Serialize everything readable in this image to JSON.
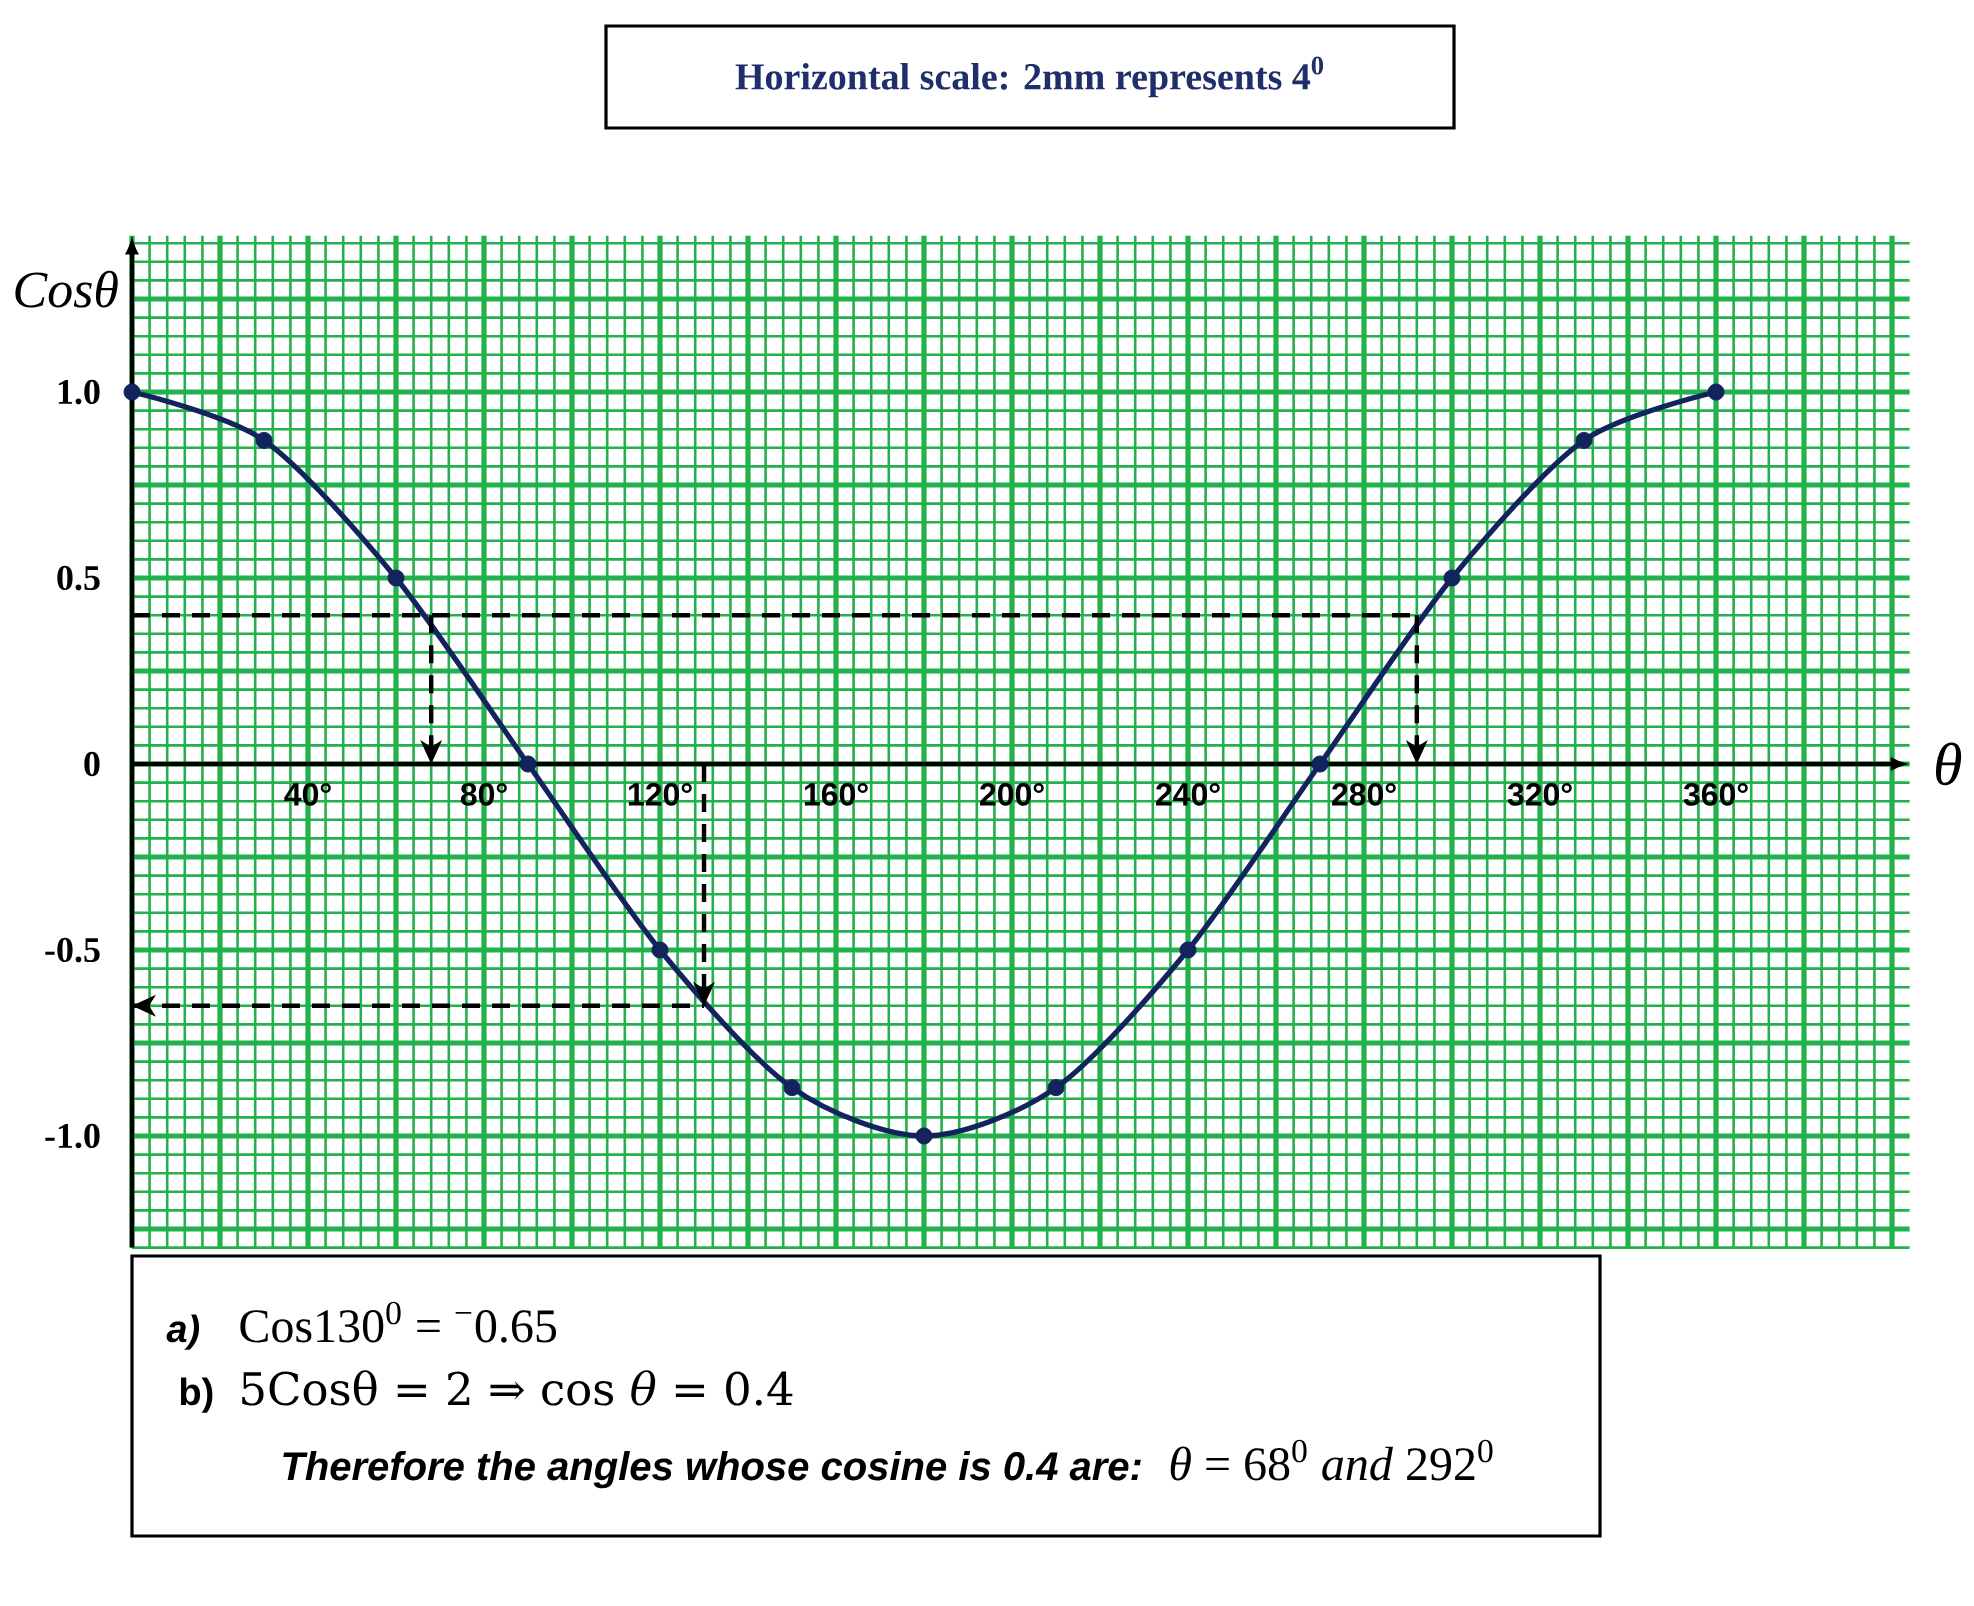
{
  "chart_data": {
    "type": "line",
    "xlabel": "θ",
    "ylabel": "Cosθ",
    "annotations": [
      "Horizontal scale: 2mm represents 4$^{0}$",
      "a)",
      "Cos130$^{0}$ = $^{−}$0.65",
      "b)",
      "5Cosθ = 2 ⇒ cos *θ* = 0.4",
      "Therefore the angles whose cosine is 0.4 are:",
      "*θ* = 68$^{0}$ *and* 292$^{0}$"
    ],
    "xlim": [
      0,
      404
    ],
    "ylim": [
      -1.3,
      1.42
    ],
    "xticks": [
      {
        "value": 0,
        "label": null
      },
      {
        "value": 4,
        "label": null
      },
      {
        "value": 8,
        "label": null
      },
      {
        "value": 12,
        "label": null
      },
      {
        "value": 16,
        "label": null
      },
      {
        "value": 20,
        "label": null
      },
      {
        "value": 24,
        "label": null
      },
      {
        "value": 28,
        "label": null
      },
      {
        "value": 32,
        "label": null
      },
      {
        "value": 36,
        "label": null
      },
      {
        "value": 40,
        "label": "40°"
      },
      {
        "value": 44,
        "label": null
      },
      {
        "value": 48,
        "label": null
      },
      {
        "value": 52,
        "label": null
      },
      {
        "value": 56,
        "label": null
      },
      {
        "value": 60,
        "label": null
      },
      {
        "value": 64,
        "label": null
      },
      {
        "value": 68,
        "label": null
      },
      {
        "value": 72,
        "label": null
      },
      {
        "value": 76,
        "label": null
      },
      {
        "value": 80,
        "label": "80°"
      },
      {
        "value": 84,
        "label": null
      },
      {
        "value": 88,
        "label": null
      },
      {
        "value": 92,
        "label": null
      },
      {
        "value": 96,
        "label": null
      },
      {
        "value": 100,
        "label": null
      },
      {
        "value": 104,
        "label": null
      },
      {
        "value": 108,
        "label": null
      },
      {
        "value": 112,
        "label": null
      },
      {
        "value": 116,
        "label": null
      },
      {
        "value": 120,
        "label": "120°"
      },
      {
        "value": 124,
        "label": null
      },
      {
        "value": 128,
        "label": null
      },
      {
        "value": 132,
        "label": null
      },
      {
        "value": 136,
        "label": null
      },
      {
        "value": 140,
        "label": null
      },
      {
        "value": 144,
        "label": null
      },
      {
        "value": 148,
        "label": null
      },
      {
        "value": 152,
        "label": null
      },
      {
        "value": 156,
        "label": null
      },
      {
        "value": 160,
        "label": "160°"
      },
      {
        "value": 164,
        "label": null
      },
      {
        "value": 168,
        "label": null
      },
      {
        "value": 172,
        "label": null
      },
      {
        "value": 176,
        "label": null
      },
      {
        "value": 180,
        "label": null
      },
      {
        "value": 184,
        "label": null
      },
      {
        "value": 188,
        "label": null
      },
      {
        "value": 192,
        "label": null
      },
      {
        "value": 196,
        "label": null
      },
      {
        "value": 200,
        "label": "200°"
      },
      {
        "value": 204,
        "label": null
      },
      {
        "value": 208,
        "label": null
      },
      {
        "value": 212,
        "label": null
      },
      {
        "value": 216,
        "label": null
      },
      {
        "value": 220,
        "label": null
      },
      {
        "value": 224,
        "label": null
      },
      {
        "value": 228,
        "label": null
      },
      {
        "value": 232,
        "label": null
      },
      {
        "value": 236,
        "label": null
      },
      {
        "value": 240,
        "label": "240°"
      },
      {
        "value": 244,
        "label": null
      },
      {
        "value": 248,
        "label": null
      },
      {
        "value": 252,
        "label": null
      },
      {
        "value": 256,
        "label": null
      },
      {
        "value": 260,
        "label": null
      },
      {
        "value": 264,
        "label": null
      },
      {
        "value": 268,
        "label": null
      },
      {
        "value": 272,
        "label": null
      },
      {
        "value": 276,
        "label": null
      },
      {
        "value": 280,
        "label": "280°"
      },
      {
        "value": 284,
        "label": null
      },
      {
        "value": 288,
        "label": null
      },
      {
        "value": 292,
        "label": null
      },
      {
        "value": 296,
        "label": null
      },
      {
        "value": 300,
        "label": null
      },
      {
        "value": 304,
        "label": null
      },
      {
        "value": 308,
        "label": null
      },
      {
        "value": 312,
        "label": null
      },
      {
        "value": 316,
        "label": null
      },
      {
        "value": 320,
        "label": "320°"
      },
      {
        "value": 324,
        "label": null
      },
      {
        "value": 328,
        "label": null
      },
      {
        "value": 332,
        "label": null
      },
      {
        "value": 336,
        "label": null
      },
      {
        "value": 340,
        "label": null
      },
      {
        "value": 344,
        "label": null
      },
      {
        "value": 348,
        "label": null
      },
      {
        "value": 352,
        "label": null
      },
      {
        "value": 356,
        "label": null
      },
      {
        "value": 360,
        "label": "360°"
      },
      {
        "value": 364,
        "label": null
      },
      {
        "value": 368,
        "label": null
      },
      {
        "value": 372,
        "label": null
      },
      {
        "value": 376,
        "label": null
      },
      {
        "value": 380,
        "label": null
      },
      {
        "value": 384,
        "label": null
      },
      {
        "value": 388,
        "label": null
      },
      {
        "value": 392,
        "label": null
      },
      {
        "value": 396,
        "label": null
      },
      {
        "value": 400,
        "label": null
      }
    ],
    "yticks": [
      {
        "value": -1.3,
        "label": null
      },
      {
        "value": -1.25,
        "label": null
      },
      {
        "value": -1.2,
        "label": null
      },
      {
        "value": -1.15,
        "label": null
      },
      {
        "value": -1.1,
        "label": null
      },
      {
        "value": -1.05,
        "label": null
      },
      {
        "value": -1,
        "label": "-1.0"
      },
      {
        "value": -0.95,
        "label": null
      },
      {
        "value": -0.9,
        "label": null
      },
      {
        "value": -0.85,
        "label": null
      },
      {
        "value": -0.8,
        "label": null
      },
      {
        "value": -0.75,
        "label": null
      },
      {
        "value": -0.7,
        "label": null
      },
      {
        "value": -0.65,
        "label": null
      },
      {
        "value": -0.6,
        "label": null
      },
      {
        "value": -0.55,
        "label": null
      },
      {
        "value": -0.5,
        "label": "-0.5"
      },
      {
        "value": -0.45,
        "label": null
      },
      {
        "value": -0.4,
        "label": null
      },
      {
        "value": -0.35,
        "label": null
      },
      {
        "value": -0.3,
        "label": null
      },
      {
        "value": -0.25,
        "label": null
      },
      {
        "value": -0.2,
        "label": null
      },
      {
        "value": -0.15,
        "label": null
      },
      {
        "value": -0.1,
        "label": null
      },
      {
        "value": -0.05,
        "label": null
      },
      0,
      {
        "value": 0.05,
        "label": null
      },
      {
        "value": 0.1,
        "label": null
      },
      {
        "value": 0.15,
        "label": null
      },
      {
        "value": 0.2,
        "label": null
      },
      {
        "value": 0.25,
        "label": null
      },
      {
        "value": 0.3,
        "label": null
      },
      {
        "value": 0.35,
        "label": null
      },
      {
        "value": 0.4,
        "label": null
      },
      {
        "value": 0.45,
        "label": null
      },
      {
        "value": 0.5,
        "label": "0.5"
      },
      {
        "value": 0.55,
        "label": null
      },
      {
        "value": 0.6,
        "label": null
      },
      {
        "value": 0.65,
        "label": null
      },
      {
        "value": 0.7,
        "label": null
      },
      {
        "value": 0.75,
        "label": null
      },
      {
        "value": 0.8,
        "label": null
      },
      {
        "value": 0.85,
        "label": null
      },
      {
        "value": 0.9,
        "label": null
      },
      {
        "value": 0.95,
        "label": null
      },
      {
        "value": 1,
        "label": "1.0"
      },
      {
        "value": 1.05,
        "label": null
      },
      {
        "value": 1.1,
        "label": null
      },
      {
        "value": 1.15,
        "label": null
      },
      {
        "value": 1.2,
        "label": null
      },
      {
        "value": 1.25,
        "label": null
      },
      {
        "value": 1.3,
        "label": null
      },
      {
        "value": 1.35,
        "label": null
      },
      {
        "value": 1.4,
        "label": null
      }
    ],
    "grid": true,
    "ref_lines": [
      {
        "axis": "y",
        "value": 0.4,
        "color": "#000000",
        "line_style": "dashed"
      },
      {
        "axis": "x",
        "value": 68,
        "color": "#000000",
        "line_style": "dashed"
      },
      {
        "axis": "x",
        "value": 292,
        "color": "#000000",
        "line_style": "dashed"
      },
      {
        "axis": "x",
        "value": 130,
        "color": "#000000",
        "line_style": "dashed"
      },
      {
        "axis": "y",
        "value": -0.65,
        "color": "#000000",
        "line_style": "dashed"
      }
    ],
    "series": [
      {
        "color": "#13235e",
        "marker": "circle",
        "x": [
          0,
          30,
          60,
          90,
          120,
          150,
          180,
          210,
          240,
          270,
          300,
          330,
          360
        ],
        "values": [
          1,
          0.87,
          0.5,
          0,
          -0.5,
          -0.87,
          -1,
          -0.87,
          -0.5,
          0,
          0.5,
          0.87,
          1
        ]
      }
    ]
  }
}
